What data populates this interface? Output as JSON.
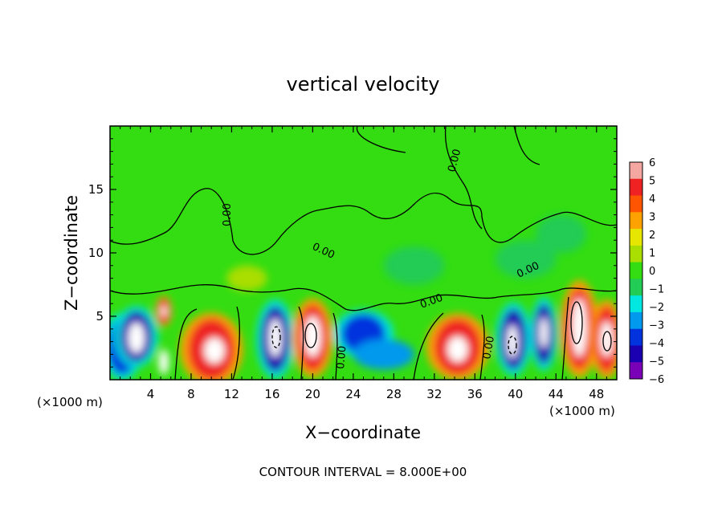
{
  "chart_data": {
    "type": "heatmap",
    "title": "vertical velocity",
    "xlabel": "X−coordinate",
    "ylabel": "Z−coordinate",
    "x_unit_left": "(×1000 m)",
    "x_unit_right": "(×1000 m)",
    "xlim": [
      0,
      50
    ],
    "ylim": [
      0,
      20
    ],
    "x_ticks": [
      "4",
      "8",
      "12",
      "16",
      "20",
      "24",
      "28",
      "32",
      "36",
      "40",
      "44",
      "48"
    ],
    "x_tick_values": [
      4,
      8,
      12,
      16,
      20,
      24,
      28,
      32,
      36,
      40,
      44,
      48
    ],
    "y_ticks": [
      "5",
      "10",
      "15"
    ],
    "y_tick_values": [
      5,
      10,
      15
    ],
    "colorbar": {
      "labels": [
        "6",
        "5",
        "4",
        "3",
        "2",
        "1",
        "0",
        "−1",
        "−2",
        "−3",
        "−4",
        "−5",
        "−6"
      ],
      "values": [
        6,
        5,
        4,
        3,
        2,
        1,
        0,
        -1,
        -2,
        -3,
        -4,
        -5,
        -6
      ],
      "colors": [
        "#f4a6a0",
        "#ee2222",
        "#ff5500",
        "#ffa200",
        "#e6e600",
        "#aadd00",
        "#33dd11",
        "#22cc55",
        "#00e6e0",
        "#0099ee",
        "#0033dd",
        "#1a00b0",
        "#7a00b8"
      ]
    },
    "contour_labels": [
      "0.00",
      "0.00",
      "0.00",
      "0.00",
      "0.00",
      "0.00",
      "0.00"
    ],
    "footer": "CONTOUR INTERVAL = 8.000E+00",
    "cells": [
      {
        "x": 1.2,
        "z": 2.6,
        "rx": 1.5,
        "rz": 2.2,
        "value": -4
      },
      {
        "x": 2.6,
        "z": 3.4,
        "rx": 1.6,
        "rz": 2.0,
        "value": -5
      },
      {
        "x": 2.6,
        "z": 3.3,
        "rx": 0.8,
        "rz": 1.2,
        "value": -6.5
      },
      {
        "x": 5.3,
        "z": 5.4,
        "rx": 0.6,
        "rz": 1.0,
        "value": 5
      },
      {
        "x": 5.3,
        "z": 5.4,
        "rx": 0.3,
        "rz": 0.4,
        "value": 6.5
      },
      {
        "x": 5.3,
        "z": 1.4,
        "rx": 0.5,
        "rz": 1.0,
        "value": 6.5
      },
      {
        "x": 10.0,
        "z": 2.4,
        "rx": 2.3,
        "rz": 2.4,
        "value": 4.5
      },
      {
        "x": 10.3,
        "z": 2.3,
        "rx": 1.0,
        "rz": 1.0,
        "value": 6.5
      },
      {
        "x": 16.3,
        "z": 3.2,
        "rx": 1.4,
        "rz": 2.6,
        "value": -5
      },
      {
        "x": 16.3,
        "z": 3.3,
        "rx": 0.6,
        "rz": 1.5,
        "value": -6.5
      },
      {
        "x": 20.0,
        "z": 3.3,
        "rx": 1.5,
        "rz": 2.6,
        "value": 5
      },
      {
        "x": 20.0,
        "z": 3.4,
        "rx": 0.8,
        "rz": 1.6,
        "value": 6.5
      },
      {
        "x": 25.0,
        "z": 3.6,
        "rx": 2.2,
        "rz": 1.6,
        "value": -4
      },
      {
        "x": 27.0,
        "z": 2.0,
        "rx": 3.0,
        "rz": 1.2,
        "value": -3.5
      },
      {
        "x": 34.3,
        "z": 2.6,
        "rx": 2.3,
        "rz": 2.2,
        "value": 4.5
      },
      {
        "x": 34.3,
        "z": 2.4,
        "rx": 1.0,
        "rz": 1.0,
        "value": 6.5
      },
      {
        "x": 39.8,
        "z": 3.2,
        "rx": 1.3,
        "rz": 2.4,
        "value": -5
      },
      {
        "x": 39.7,
        "z": 3.0,
        "rx": 0.5,
        "rz": 1.3,
        "value": -6.5
      },
      {
        "x": 42.8,
        "z": 3.6,
        "rx": 1.0,
        "rz": 2.4,
        "value": -5
      },
      {
        "x": 42.8,
        "z": 3.7,
        "rx": 0.4,
        "rz": 1.2,
        "value": -6.5
      },
      {
        "x": 46.3,
        "z": 4.0,
        "rx": 1.4,
        "rz": 3.2,
        "value": 5
      },
      {
        "x": 46.3,
        "z": 4.1,
        "rx": 0.7,
        "rz": 2.3,
        "value": 6.5
      },
      {
        "x": 49.0,
        "z": 3.2,
        "rx": 1.2,
        "rz": 2.6,
        "value": 5
      },
      {
        "x": 49.0,
        "z": 3.2,
        "rx": 0.6,
        "rz": 1.4,
        "value": 6.5
      },
      {
        "x": 44.5,
        "z": 11.5,
        "rx": 2.5,
        "rz": 1.5,
        "value": -1.5
      },
      {
        "x": 41.0,
        "z": 9.5,
        "rx": 3.0,
        "rz": 1.5,
        "value": -1
      },
      {
        "x": 30.0,
        "z": 9.0,
        "rx": 3.0,
        "rz": 1.5,
        "value": -1
      },
      {
        "x": 13.5,
        "z": 8.0,
        "rx": 2.0,
        "rz": 1.0,
        "value": 1
      }
    ]
  }
}
